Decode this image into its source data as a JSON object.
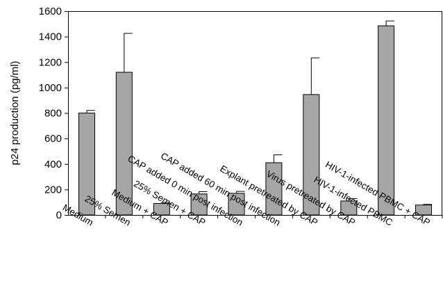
{
  "chart_data": {
    "type": "bar",
    "title": "",
    "xlabel": "",
    "ylabel": "p24 production (pg/ml)",
    "ylim": [
      0,
      1600
    ],
    "yticks": [
      0,
      200,
      400,
      600,
      800,
      1000,
      1200,
      1400,
      1600
    ],
    "grid": false,
    "legend": "none",
    "bar_color": "#a6a6a6",
    "categories": [
      "Medium",
      "25% Semen",
      "Medium + CAP",
      "25% Semen + CAP",
      "CAP added 0 min post infection",
      "CAP added 60 min post infection",
      "Explant pretreated by CAP",
      "Virus pretreated by CAP",
      "HIV-1-infected PBMC",
      "HIV-1-infected PBMC + CAP"
    ],
    "values": [
      800,
      1120,
      90,
      165,
      170,
      410,
      945,
      110,
      1485,
      78
    ],
    "errors": [
      20,
      305,
      8,
      18,
      15,
      62,
      288,
      18,
      38,
      5
    ]
  }
}
